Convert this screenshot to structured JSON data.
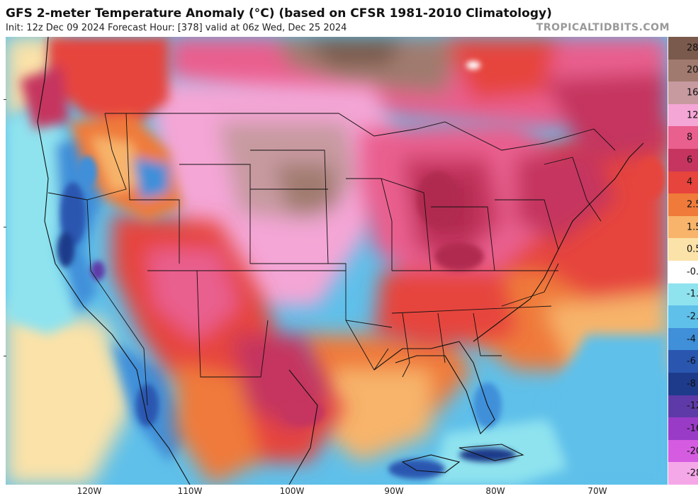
{
  "header": {
    "title": "GFS 2-meter Temperature Anomaly (°C) (based on CFSR 1981-2010 Climatology)",
    "subtitle": "Init: 12z Dec 09 2024   Forecast Hour: [378]   valid at 06z Wed, Dec 25 2024",
    "credit": "TROPICALTIDBITS.COM"
  },
  "map": {
    "lon_ticks": [
      "120W",
      "110W",
      "100W",
      "90W",
      "80W",
      "70W"
    ]
  },
  "colorbar": {
    "labels": [
      "28",
      "20",
      "16",
      "12",
      "8",
      "6",
      "4",
      "2.5",
      "1.5",
      "0.5",
      "-0.",
      "-1.",
      "-2.",
      "-4",
      "-6",
      "-8",
      "-12",
      "-16",
      "-20",
      "-28"
    ],
    "colors": [
      "#7a5a4c",
      "#a07a6e",
      "#c79aa0",
      "#f4a6d6",
      "#e95f8e",
      "#c5355f",
      "#e6443c",
      "#ef7a3a",
      "#f7b46a",
      "#fbe2a8",
      "#ffffff",
      "#8fe3ef",
      "#5fc0ea",
      "#3f8fd9",
      "#2a56b0",
      "#1e3a8a",
      "#5e3aa8",
      "#9a3bc7",
      "#d55ce0",
      "#f5a8e8"
    ]
  },
  "colors": {
    "warm_strong": "#c5355f",
    "warm_mid": "#e95f8e",
    "warm_pink": "#f4a6d6",
    "cold_blue": "#3f8fd9",
    "ocean_warm": "#ef7a3a",
    "ocean_cool": "#8fe3ef"
  }
}
